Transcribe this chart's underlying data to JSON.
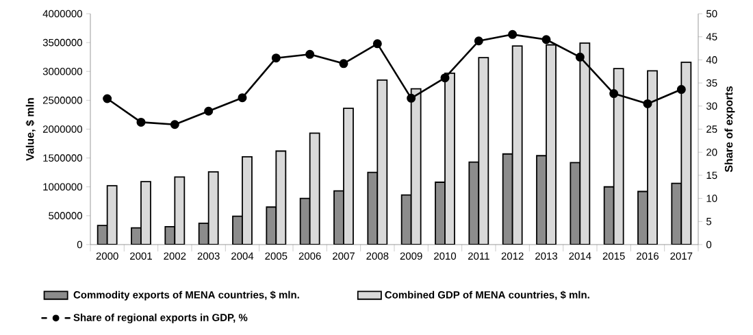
{
  "chart_data": {
    "type": "bar",
    "categories": [
      "2000",
      "2001",
      "2002",
      "2003",
      "2004",
      "2005",
      "2006",
      "2007",
      "2008",
      "2009",
      "2010",
      "2011",
      "2012",
      "2013",
      "2014",
      "2015",
      "2016",
      "2017"
    ],
    "ylabel": "Value, $ mln",
    "y2label": "Share of exports",
    "ylim": [
      0,
      4000000
    ],
    "yticks": [
      0,
      500000,
      1000000,
      1500000,
      2000000,
      2500000,
      3000000,
      3500000,
      4000000
    ],
    "y2lim": [
      0,
      50
    ],
    "y2ticks": [
      0,
      5,
      10,
      15,
      20,
      25,
      30,
      35,
      40,
      45,
      50
    ],
    "legend": "bottom",
    "series": [
      {
        "name": "Commodity exports of MENA countries, $ mln.",
        "color": "#8c8c8c",
        "values": [
          330000,
          290000,
          310000,
          370000,
          490000,
          650000,
          800000,
          930000,
          1250000,
          860000,
          1080000,
          1430000,
          1570000,
          1540000,
          1420000,
          1000000,
          920000,
          1060000
        ]
      },
      {
        "name": "Combined GDP of MENA countries, $ mln.",
        "color": "#d9d9d9",
        "values": [
          1020000,
          1090000,
          1170000,
          1260000,
          1520000,
          1620000,
          1930000,
          2360000,
          2850000,
          2700000,
          2970000,
          3240000,
          3440000,
          3460000,
          3490000,
          3050000,
          3010000,
          3160000
        ]
      },
      {
        "name": "Share of regional exports in GDP, %",
        "type": "line",
        "axis": "y2",
        "color": "#000000",
        "marker": "circle",
        "values": [
          31.6,
          26.5,
          26.0,
          28.9,
          31.8,
          40.4,
          41.2,
          39.2,
          43.5,
          31.7,
          36.1,
          44.1,
          45.5,
          44.4,
          40.6,
          32.7,
          30.5,
          33.6
        ]
      }
    ]
  }
}
